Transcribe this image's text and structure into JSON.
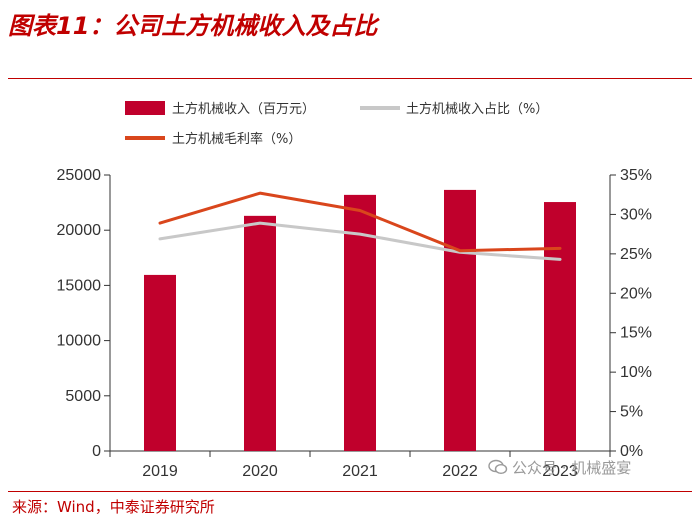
{
  "figure": {
    "title": "图表11：公司土方机械收入及占比",
    "source": "来源：Wind，中泰证券研究所",
    "watermark": "公众号 · 机械盛宴"
  },
  "colors": {
    "bar": "#c0002c",
    "share_line": "#c8c8c8",
    "margin_line": "#d9461c",
    "accent": "#c00000"
  },
  "chart_data": {
    "type": "bar",
    "categories": [
      "2019",
      "2020",
      "2021",
      "2022",
      "2023"
    ],
    "series": [
      {
        "name": "土方机械收入（百万元）",
        "kind": "bar",
        "axis": "left",
        "values": [
          15950,
          21300,
          23200,
          23650,
          22550
        ]
      },
      {
        "name": "土方机械收入占比（%）",
        "kind": "line",
        "axis": "right",
        "values": [
          26.9,
          28.9,
          27.5,
          25.2,
          24.3
        ]
      },
      {
        "name": "土方机械毛利率（%）",
        "kind": "line",
        "axis": "right",
        "values": [
          28.9,
          32.7,
          30.5,
          25.4,
          25.7
        ]
      }
    ],
    "y_left": {
      "min": 0,
      "max": 25000,
      "ticks": [
        "0",
        "5000",
        "10000",
        "15000",
        "20000",
        "25000"
      ]
    },
    "y_right": {
      "min": 0,
      "max": 35,
      "ticks": [
        "0%",
        "5%",
        "10%",
        "15%",
        "20%",
        "25%",
        "30%",
        "35%"
      ]
    },
    "grid": false,
    "legend_position": "top"
  }
}
